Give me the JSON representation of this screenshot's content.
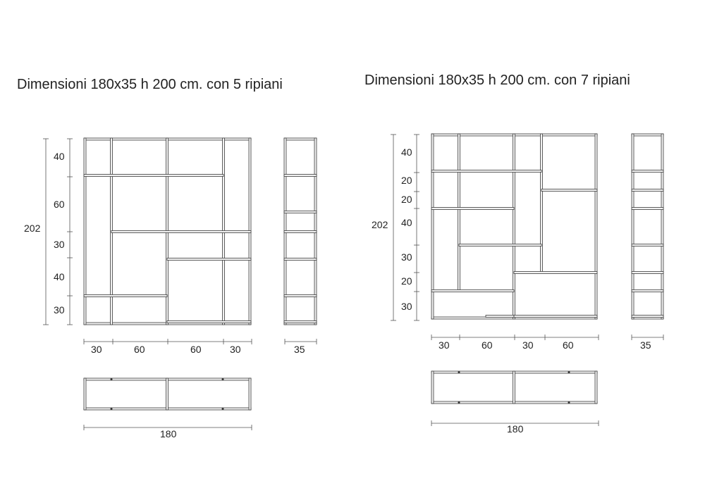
{
  "left": {
    "title": "Dimensioni 180x35 h 200 cm. con 5 ripiani",
    "total_height": "202",
    "height_segments": [
      "40",
      "60",
      "30",
      "40",
      "30"
    ],
    "width_segments": [
      "30",
      "60",
      "60",
      "30"
    ],
    "depth": "35",
    "total_width": "180"
  },
  "right": {
    "title": "Dimensioni 180x35 h 200 cm. con 7 ripiani",
    "total_height": "202",
    "height_segments": [
      "40",
      "20",
      "20",
      "40",
      "30",
      "20",
      "30"
    ],
    "width_segments": [
      "30",
      "60",
      "30",
      "60"
    ],
    "depth": "35",
    "total_width": "180"
  },
  "colors": {
    "line": "#3a3a3a",
    "panel_fill": "#f2f2f2"
  }
}
